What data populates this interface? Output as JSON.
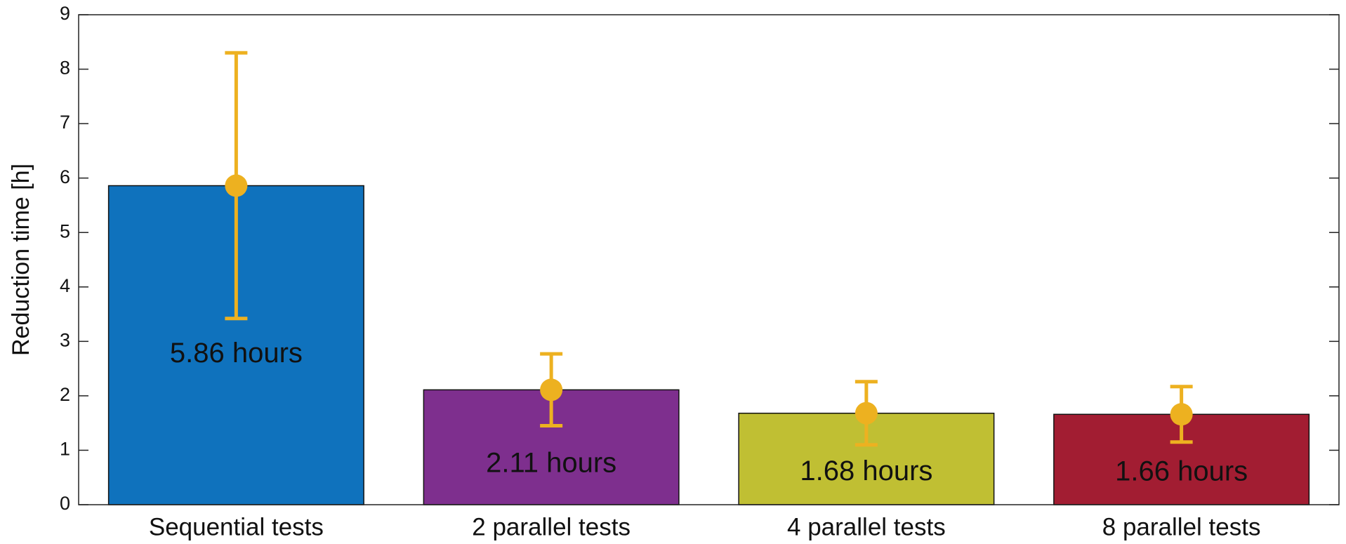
{
  "chart_data": {
    "type": "bar",
    "ylabel": "Reduction time [h]",
    "categories": [
      "Sequential tests",
      "2 parallel tests",
      "4 parallel tests",
      "8 parallel tests"
    ],
    "values": [
      5.86,
      2.11,
      1.68,
      1.66
    ],
    "value_labels": [
      "5.86 hours",
      "2.11 hours",
      "1.68 hours",
      "1.66 hours"
    ],
    "errors": [
      2.44,
      0.66,
      0.58,
      0.51
    ],
    "colors": [
      "#0f72bd",
      "#7e2f8e",
      "#c0bf33",
      "#a21d32"
    ],
    "error_color": "#edb120",
    "ylim": [
      0,
      9
    ],
    "yticks": [
      0,
      1,
      2,
      3,
      4,
      5,
      6,
      7,
      8,
      9
    ]
  }
}
